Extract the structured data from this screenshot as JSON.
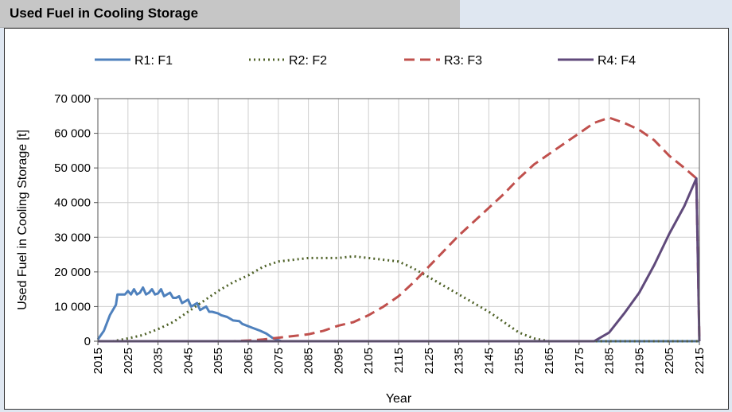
{
  "page": {
    "title": "Used Fuel in Cooling Storage"
  },
  "chart_data": {
    "type": "line",
    "title": "",
    "xlabel": "Year",
    "ylabel": "Used Fuel in Cooling Storage [t]",
    "xlim": [
      2015,
      2215
    ],
    "ylim": [
      0,
      70000
    ],
    "x_ticks": [
      2015,
      2025,
      2035,
      2045,
      2055,
      2065,
      2075,
      2085,
      2095,
      2105,
      2115,
      2125,
      2135,
      2145,
      2155,
      2165,
      2175,
      2185,
      2195,
      2205,
      2215
    ],
    "y_ticks": [
      0,
      10000,
      20000,
      30000,
      40000,
      50000,
      60000,
      70000
    ],
    "y_tick_labels": [
      "0",
      "10 000",
      "20 000",
      "30 000",
      "40 000",
      "50 000",
      "60 000",
      "70 000"
    ],
    "grid": true,
    "legend_position": "top",
    "series": [
      {
        "name": "R1: F1",
        "color": "#4f81bd",
        "style": "solid",
        "points": [
          [
            2015,
            500
          ],
          [
            2017,
            3000
          ],
          [
            2019,
            7500
          ],
          [
            2021,
            10500
          ],
          [
            2021.5,
            13500
          ],
          [
            2024,
            13500
          ],
          [
            2025,
            14500
          ],
          [
            2026,
            13500
          ],
          [
            2027,
            15000
          ],
          [
            2028,
            13500
          ],
          [
            2029,
            14000
          ],
          [
            2030,
            15500
          ],
          [
            2031,
            13500
          ],
          [
            2032,
            14000
          ],
          [
            2033,
            15000
          ],
          [
            2034,
            13500
          ],
          [
            2035,
            13800
          ],
          [
            2036,
            15000
          ],
          [
            2037,
            13000
          ],
          [
            2038,
            13500
          ],
          [
            2039,
            14000
          ],
          [
            2040,
            12500
          ],
          [
            2041,
            12500
          ],
          [
            2042,
            13000
          ],
          [
            2043,
            11000
          ],
          [
            2044,
            11500
          ],
          [
            2045,
            12000
          ],
          [
            2046,
            10000
          ],
          [
            2047,
            10500
          ],
          [
            2048,
            11000
          ],
          [
            2049,
            9000
          ],
          [
            2050,
            9500
          ],
          [
            2051,
            10000
          ],
          [
            2052,
            8500
          ],
          [
            2053,
            8500
          ],
          [
            2055,
            8000
          ],
          [
            2056,
            7500
          ],
          [
            2058,
            7000
          ],
          [
            2060,
            6000
          ],
          [
            2062,
            5800
          ],
          [
            2063,
            5000
          ],
          [
            2066,
            4000
          ],
          [
            2069,
            3000
          ],
          [
            2071,
            2200
          ],
          [
            2073,
            1000
          ],
          [
            2076,
            0
          ],
          [
            2215,
            0
          ]
        ]
      },
      {
        "name": "R2: F2",
        "color": "#4f6228",
        "style": "dotted",
        "points": [
          [
            2015,
            0
          ],
          [
            2020,
            0
          ],
          [
            2025,
            800
          ],
          [
            2030,
            1800
          ],
          [
            2035,
            3500
          ],
          [
            2040,
            5500
          ],
          [
            2045,
            8500
          ],
          [
            2050,
            11500
          ],
          [
            2055,
            14500
          ],
          [
            2060,
            17000
          ],
          [
            2065,
            19000
          ],
          [
            2070,
            21500
          ],
          [
            2075,
            23000
          ],
          [
            2080,
            23500
          ],
          [
            2085,
            24000
          ],
          [
            2090,
            24000
          ],
          [
            2095,
            24000
          ],
          [
            2100,
            24500
          ],
          [
            2105,
            24000
          ],
          [
            2110,
            23500
          ],
          [
            2115,
            23000
          ],
          [
            2120,
            21000
          ],
          [
            2125,
            18500
          ],
          [
            2130,
            16000
          ],
          [
            2135,
            13500
          ],
          [
            2140,
            11000
          ],
          [
            2145,
            8500
          ],
          [
            2150,
            5500
          ],
          [
            2155,
            2500
          ],
          [
            2160,
            800
          ],
          [
            2165,
            0
          ],
          [
            2215,
            0
          ]
        ]
      },
      {
        "name": "R3: F3",
        "color": "#c0504d",
        "style": "dashed",
        "points": [
          [
            2015,
            0
          ],
          [
            2060,
            0
          ],
          [
            2065,
            200
          ],
          [
            2070,
            500
          ],
          [
            2075,
            1000
          ],
          [
            2080,
            1500
          ],
          [
            2085,
            2000
          ],
          [
            2090,
            3000
          ],
          [
            2095,
            4500
          ],
          [
            2100,
            5500
          ],
          [
            2105,
            7500
          ],
          [
            2110,
            10000
          ],
          [
            2115,
            13000
          ],
          [
            2120,
            17000
          ],
          [
            2125,
            21500
          ],
          [
            2130,
            26000
          ],
          [
            2135,
            30500
          ],
          [
            2140,
            34500
          ],
          [
            2145,
            38500
          ],
          [
            2150,
            42500
          ],
          [
            2155,
            47000
          ],
          [
            2160,
            51000
          ],
          [
            2165,
            54000
          ],
          [
            2170,
            57000
          ],
          [
            2175,
            60000
          ],
          [
            2180,
            63000
          ],
          [
            2185,
            64500
          ],
          [
            2190,
            63000
          ],
          [
            2195,
            61000
          ],
          [
            2200,
            58000
          ],
          [
            2205,
            53500
          ],
          [
            2210,
            50000
          ],
          [
            2214,
            47000
          ],
          [
            2215,
            0
          ]
        ]
      },
      {
        "name": "R4: F4",
        "color": "#604a7b",
        "style": "solid",
        "points": [
          [
            2015,
            0
          ],
          [
            2180,
            0
          ],
          [
            2185,
            2500
          ],
          [
            2190,
            8000
          ],
          [
            2195,
            14000
          ],
          [
            2200,
            22000
          ],
          [
            2205,
            31000
          ],
          [
            2210,
            39000
          ],
          [
            2214,
            47000
          ],
          [
            2215,
            0
          ]
        ]
      }
    ]
  }
}
